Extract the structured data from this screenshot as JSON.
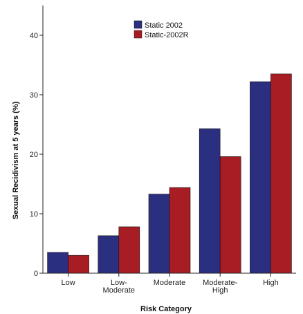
{
  "chart_data": {
    "type": "bar",
    "title": "",
    "xlabel": "Risk Category",
    "ylabel": "Sexual Recidivism at 5 years (%)",
    "ylim": [
      0,
      45
    ],
    "yticks": [
      0,
      10,
      20,
      30,
      40
    ],
    "categories": [
      [
        "Low"
      ],
      [
        "Low-",
        "Moderate"
      ],
      [
        "Moderate"
      ],
      [
        "Moderate-",
        "High"
      ],
      [
        "High"
      ]
    ],
    "series": [
      {
        "name": "Static 2002",
        "color": "#2b2f7f",
        "values": [
          3.5,
          6.3,
          13.3,
          24.3,
          32.2
        ]
      },
      {
        "name": "Static-2002R",
        "color": "#a81d24",
        "values": [
          3.0,
          7.8,
          14.4,
          19.6,
          33.5
        ]
      }
    ],
    "legend_position": "top-center",
    "grid": false
  }
}
